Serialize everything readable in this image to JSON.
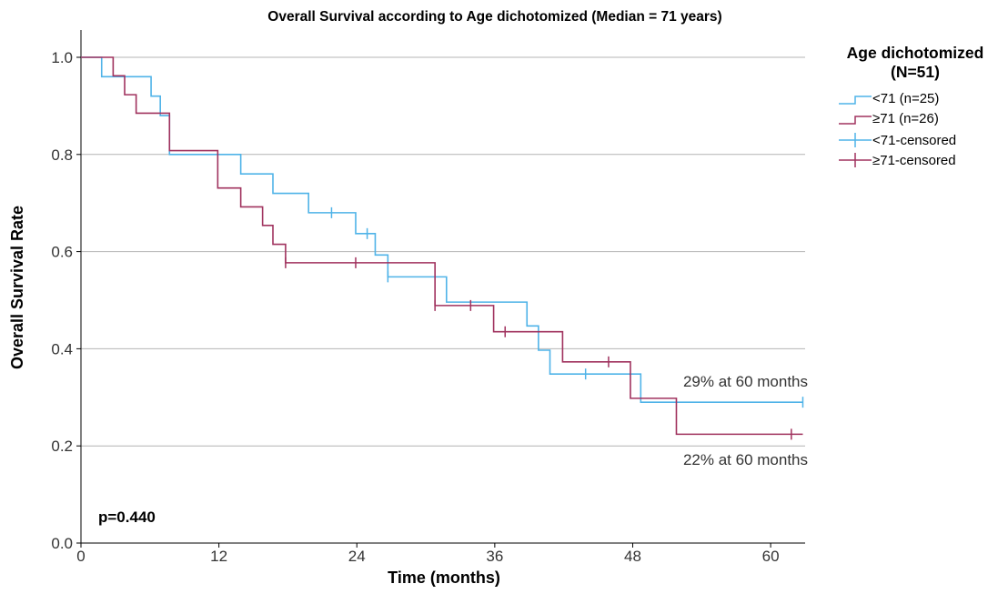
{
  "chart_data": {
    "type": "line",
    "subtype": "kaplan-meier",
    "title": "Overall Survival according to Age dichotomized (Median = 71 years)",
    "xlabel": "Time (months)",
    "ylabel": "Overall Survival Rate",
    "xlim": [
      0,
      63
    ],
    "ylim": [
      0,
      1.05
    ],
    "xticks": [
      0,
      12,
      24,
      36,
      48,
      60
    ],
    "yticks": [
      0.0,
      0.2,
      0.4,
      0.6,
      0.8,
      1.0
    ],
    "xtick_labels": [
      "0",
      "12",
      "24",
      "36",
      "48",
      "60"
    ],
    "ytick_labels": [
      "0.0",
      "0.2",
      "0.4",
      "0.6",
      "0.8",
      "1.0"
    ],
    "grid": "horizontal",
    "legend_position": "right",
    "legend_title": "Age dichotomized\n(N=51)",
    "legend_title_lines": [
      "Age dichotomized",
      "(N=51)"
    ],
    "series": [
      {
        "name": "<71 (n=25)",
        "censored_name": "<71-censored",
        "color": "#4FB3E8",
        "x": [
          0,
          1.8,
          4.7,
          6.1,
          6.9,
          7.7,
          11.9,
          13.9,
          16.7,
          19.8,
          23.9,
          25.6,
          26.7,
          31.8,
          38.8,
          39.8,
          40.8,
          48.7,
          62.8
        ],
        "y": [
          1.0,
          0.96,
          0.96,
          0.92,
          0.88,
          0.8,
          0.8,
          0.76,
          0.72,
          0.68,
          0.637,
          0.593,
          0.548,
          0.496,
          0.447,
          0.397,
          0.348,
          0.29,
          0.29
        ],
        "censored": [
          [
            21.8,
            0.68
          ],
          [
            24.9,
            0.637
          ],
          [
            26.7,
            0.548
          ],
          [
            43.9,
            0.348
          ],
          [
            62.8,
            0.29
          ]
        ]
      },
      {
        "name": "≥71 (n=26)",
        "censored_name": "≥71-censored",
        "color": "#A0325E",
        "x": [
          0,
          2.8,
          3.8,
          4.8,
          7.7,
          11.9,
          13.9,
          15.8,
          16.7,
          17.8,
          30.8,
          35.9,
          41.9,
          47.8,
          51.8,
          62.8
        ],
        "y": [
          1.0,
          0.962,
          0.923,
          0.885,
          0.808,
          0.731,
          0.692,
          0.654,
          0.615,
          0.577,
          0.489,
          0.435,
          0.373,
          0.298,
          0.224,
          0.224
        ],
        "censored": [
          [
            17.8,
            0.577
          ],
          [
            23.9,
            0.577
          ],
          [
            30.8,
            0.489
          ],
          [
            33.9,
            0.489
          ],
          [
            36.9,
            0.435
          ],
          [
            45.9,
            0.373
          ],
          [
            61.8,
            0.224
          ]
        ]
      }
    ],
    "annotations": [
      {
        "text": "29% at 60 months"
      },
      {
        "text": "22% at 60 months"
      },
      {
        "text": "p=0.440"
      }
    ]
  }
}
